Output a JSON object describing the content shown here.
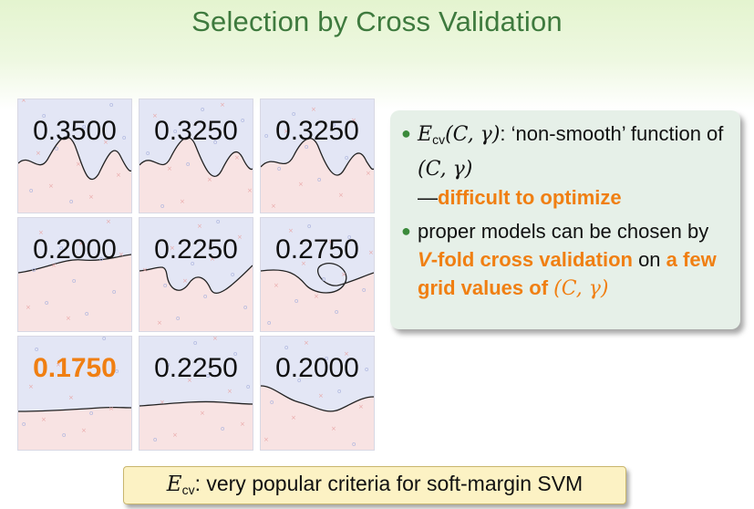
{
  "title": "Selection by Cross Validation",
  "grid": {
    "cells": [
      {
        "label": "0.3500",
        "best": false
      },
      {
        "label": "0.3250",
        "best": false
      },
      {
        "label": "0.3250",
        "best": false
      },
      {
        "label": "0.2000",
        "best": false
      },
      {
        "label": "0.2250",
        "best": false
      },
      {
        "label": "0.2750",
        "best": false
      },
      {
        "label": "0.1750",
        "best": true
      },
      {
        "label": "0.2250",
        "best": false
      },
      {
        "label": "0.2000",
        "best": false
      }
    ]
  },
  "bullets": {
    "item1": {
      "symbol": "E",
      "subscript": "cv",
      "args": "(C, γ)",
      "text_a": ": ‘non-smooth’ function of ",
      "args2": "(C, γ)",
      "dash": "—",
      "highlight": "difficult to optimize"
    },
    "item2": {
      "text_a": "proper models can be chosen by ",
      "highlight_v": "V",
      "highlight_a": "-fold cross validation",
      "text_b": " on ",
      "highlight_b": "a few grid values of ",
      "highlight_args": "(C, γ)"
    }
  },
  "footer": {
    "symbol": "E",
    "subscript": "cv",
    "text": ": very popular criteria for soft-margin SVM"
  },
  "colors": {
    "title": "#3e7a3e",
    "highlight": "#f07f12",
    "bullet_box": "#e6f0e8",
    "footer_box": "#fcf2c4",
    "region_blue": "#e3e6f5",
    "region_red": "#f8e3e3"
  }
}
